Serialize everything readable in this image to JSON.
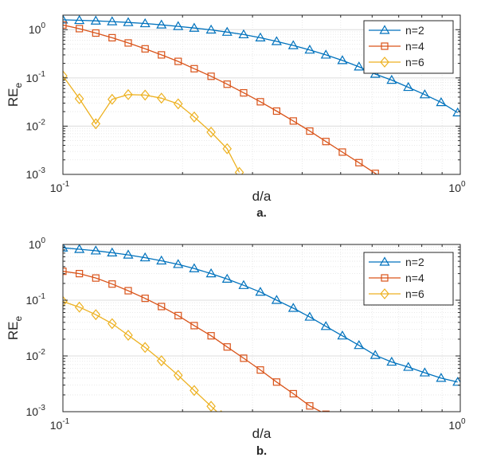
{
  "chart_data": [
    {
      "type": "line",
      "panel_label": "a.",
      "xlabel": "d/a",
      "ylabel_main": "RE",
      "ylabel_sub": "e",
      "xscale": "log",
      "yscale": "log",
      "xlim": [
        0.1,
        1
      ],
      "ylim": [
        0.001,
        2
      ],
      "grid": true,
      "legend_position": "top-right",
      "x_ticks": [
        {
          "base": "10",
          "exp": "-1"
        },
        {
          "base": "10",
          "exp": "0"
        }
      ],
      "y_ticks": [
        {
          "base": "10",
          "exp": "-3"
        },
        {
          "base": "10",
          "exp": "-2"
        },
        {
          "base": "10",
          "exp": "-1"
        },
        {
          "base": "10",
          "exp": "0"
        }
      ],
      "series": [
        {
          "name": "n=2",
          "color": "#0072BD",
          "marker": "triangle",
          "x": [
            0.1,
            0.11,
            0.121,
            0.133,
            0.146,
            0.161,
            0.177,
            0.195,
            0.214,
            0.236,
            0.259,
            0.285,
            0.314,
            0.345,
            0.38,
            0.418,
            0.459,
            0.505,
            0.556,
            0.611,
            0.672,
            0.74,
            0.814,
            0.895,
            0.985
          ],
          "y": [
            1.6,
            1.56,
            1.52,
            1.47,
            1.41,
            1.34,
            1.26,
            1.17,
            1.08,
            0.99,
            0.89,
            0.79,
            0.68,
            0.57,
            0.47,
            0.38,
            0.3,
            0.23,
            0.17,
            0.12,
            0.09,
            0.064,
            0.045,
            0.031,
            0.019
          ]
        },
        {
          "name": "n=4",
          "color": "#D95319",
          "marker": "square",
          "x": [
            0.1,
            0.11,
            0.121,
            0.133,
            0.146,
            0.161,
            0.177,
            0.195,
            0.214,
            0.236,
            0.259,
            0.285,
            0.314,
            0.345,
            0.38,
            0.418,
            0.459,
            0.505,
            0.556,
            0.611,
            0.65
          ],
          "y": [
            1.25,
            1.05,
            0.85,
            0.68,
            0.53,
            0.4,
            0.3,
            0.22,
            0.155,
            0.108,
            0.074,
            0.049,
            0.032,
            0.0205,
            0.0128,
            0.0079,
            0.0048,
            0.0029,
            0.00175,
            0.00105,
            0.00075
          ]
        },
        {
          "name": "n=6",
          "color": "#EDB120",
          "marker": "diamond",
          "x": [
            0.1,
            0.11,
            0.121,
            0.133,
            0.146,
            0.161,
            0.177,
            0.195,
            0.214,
            0.236,
            0.259,
            0.278
          ],
          "y": [
            0.11,
            0.037,
            0.0112,
            0.036,
            0.045,
            0.044,
            0.038,
            0.029,
            0.0155,
            0.0075,
            0.0034,
            0.0011
          ]
        }
      ]
    },
    {
      "type": "line",
      "panel_label": "b.",
      "xlabel": "d/a",
      "ylabel_main": "RE",
      "ylabel_sub": "e",
      "xscale": "log",
      "yscale": "log",
      "xlim": [
        0.1,
        1
      ],
      "ylim": [
        0.001,
        1
      ],
      "grid": true,
      "legend_position": "top-right",
      "x_ticks": [
        {
          "base": "10",
          "exp": "-1"
        },
        {
          "base": "10",
          "exp": "0"
        }
      ],
      "y_ticks": [
        {
          "base": "10",
          "exp": "-3"
        },
        {
          "base": "10",
          "exp": "-2"
        },
        {
          "base": "10",
          "exp": "-1"
        },
        {
          "base": "10",
          "exp": "0"
        }
      ],
      "series": [
        {
          "name": "n=2",
          "color": "#0072BD",
          "marker": "triangle",
          "x": [
            0.1,
            0.11,
            0.121,
            0.133,
            0.146,
            0.161,
            0.177,
            0.195,
            0.214,
            0.236,
            0.259,
            0.285,
            0.314,
            0.345,
            0.38,
            0.418,
            0.459,
            0.505,
            0.556,
            0.611,
            0.672,
            0.74,
            0.814,
            0.895,
            0.985
          ],
          "y": [
            0.87,
            0.82,
            0.77,
            0.71,
            0.65,
            0.58,
            0.51,
            0.44,
            0.37,
            0.3,
            0.24,
            0.185,
            0.14,
            0.1,
            0.072,
            0.05,
            0.034,
            0.023,
            0.0155,
            0.0103,
            0.0078,
            0.0063,
            0.005,
            0.004,
            0.0034
          ]
        },
        {
          "name": "n=4",
          "color": "#D95319",
          "marker": "square",
          "x": [
            0.1,
            0.11,
            0.121,
            0.133,
            0.146,
            0.161,
            0.177,
            0.195,
            0.214,
            0.236,
            0.259,
            0.285,
            0.314,
            0.345,
            0.38,
            0.418,
            0.459,
            0.48
          ],
          "y": [
            0.33,
            0.3,
            0.25,
            0.195,
            0.148,
            0.108,
            0.077,
            0.053,
            0.035,
            0.023,
            0.0145,
            0.0091,
            0.0056,
            0.0034,
            0.0021,
            0.00127,
            0.0009,
            0.00075
          ]
        },
        {
          "name": "n=6",
          "color": "#EDB120",
          "marker": "diamond",
          "x": [
            0.1,
            0.11,
            0.121,
            0.133,
            0.146,
            0.161,
            0.177,
            0.195,
            0.214,
            0.236,
            0.25
          ],
          "y": [
            0.095,
            0.075,
            0.055,
            0.038,
            0.0235,
            0.0142,
            0.0082,
            0.0045,
            0.0024,
            0.00125,
            0.00085
          ]
        }
      ]
    }
  ]
}
